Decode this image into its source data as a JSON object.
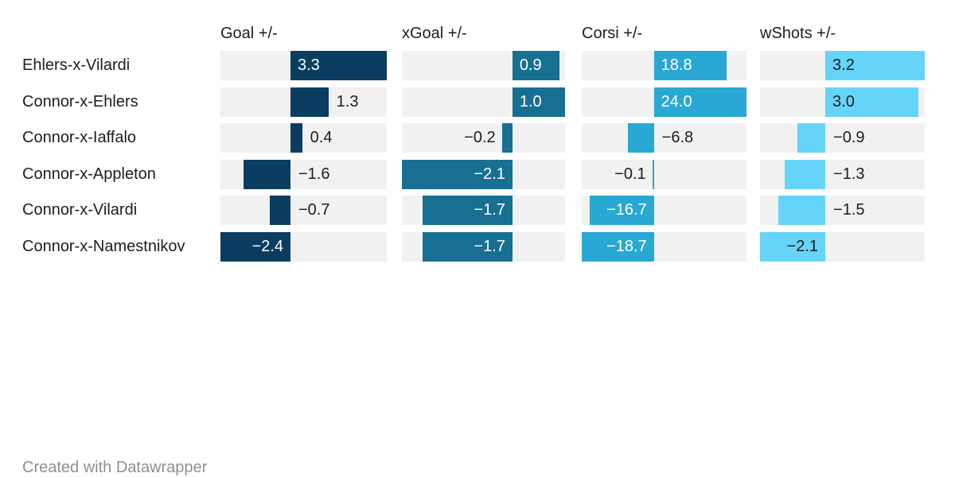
{
  "footer": {
    "text": "Created with Datawrapper"
  },
  "colors": {
    "track": "#f1f1f1",
    "text": "#1d1d1d",
    "attribution": "#8f8f8f",
    "goal_bar": "#0a3d60",
    "xgoal_bar": "#176f92",
    "corsi_bar": "#29a8d3",
    "wshots_bar": "#66d4f9"
  },
  "chart_data": {
    "type": "bar",
    "orientation": "horizontal",
    "title": "",
    "grid": false,
    "legend": "none",
    "categories": [
      "Ehlers-x-Vilardi",
      "Connor-x-Ehlers",
      "Connor-x-Iaffalo",
      "Connor-x-Appleton",
      "Connor-x-Vilardi",
      "Connor-x-Namestnikov"
    ],
    "series": [
      {
        "name": "Goal +/-",
        "values": [
          3.3,
          1.3,
          0.4,
          -1.6,
          -0.7,
          -2.4
        ],
        "color": "#0a3d60",
        "inside_label_color": "#ffffff",
        "domain": [
          -2.4,
          3.3
        ],
        "label_placements": [
          "inside",
          "right",
          "right",
          "right",
          "right",
          "inside"
        ]
      },
      {
        "name": "xGoal +/-",
        "values": [
          0.9,
          1.0,
          -0.2,
          -2.1,
          -1.7,
          -1.7
        ],
        "color": "#176f92",
        "inside_label_color": "#ffffff",
        "domain": [
          -2.1,
          1.0
        ],
        "label_placements": [
          "inside",
          "inside",
          "left",
          "inside",
          "inside",
          "inside"
        ]
      },
      {
        "name": "Corsi +/-",
        "values": [
          18.8,
          24.0,
          -6.8,
          -0.1,
          -16.7,
          -18.7
        ],
        "color": "#29a8d3",
        "inside_label_color": "#ffffff",
        "domain": [
          -18.7,
          24.0
        ],
        "label_placements": [
          "inside",
          "inside",
          "right",
          "left",
          "inside",
          "inside"
        ]
      },
      {
        "name": "wShots +/-",
        "values": [
          3.2,
          3.0,
          -0.9,
          -1.3,
          -1.5,
          -2.1
        ],
        "color": "#66d4f9",
        "inside_label_color": "#1d1d1d",
        "domain": [
          -2.1,
          3.2
        ],
        "label_placements": [
          "inside",
          "inside",
          "right",
          "right",
          "right",
          "inside"
        ]
      }
    ],
    "value_decimals": 1,
    "minus_sign": "−",
    "outside_label_color": "#1d1d1d",
    "track_color": "#f1f1f1"
  }
}
